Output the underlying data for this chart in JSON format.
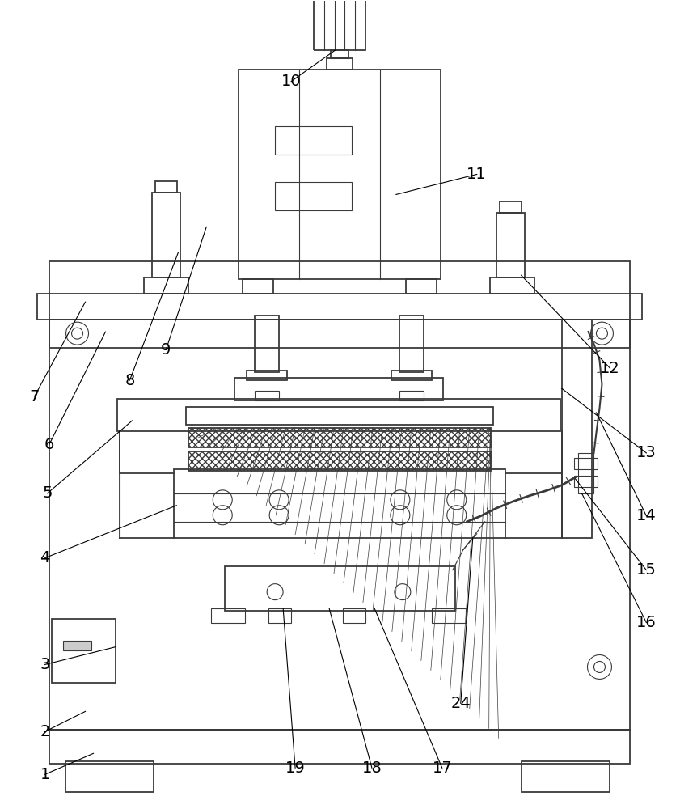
{
  "figure_width": 8.41,
  "figure_height": 10.0,
  "dpi": 100,
  "line_color": "#3a3a3a",
  "bg_color": "#ffffff",
  "lw": 1.3,
  "lw_thin": 0.8
}
